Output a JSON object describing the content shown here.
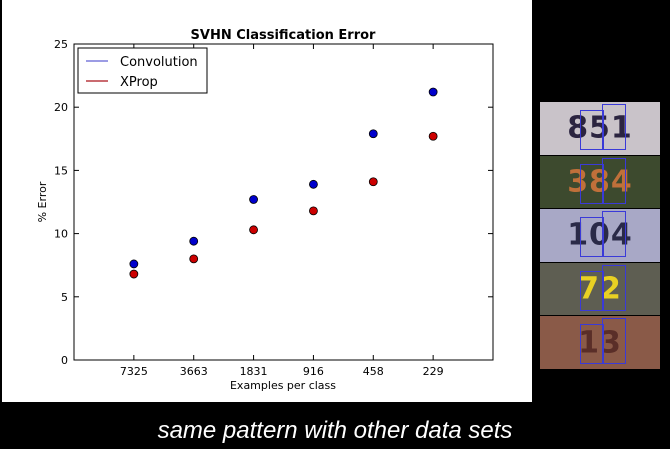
{
  "chart_data": {
    "type": "scatter",
    "title": "SVHN Classification Error",
    "xlabel": "Examples per class",
    "ylabel": "% Error",
    "categories": [
      "7325",
      "3663",
      "1831",
      "916",
      "458",
      "229"
    ],
    "ylim": [
      0,
      25
    ],
    "yticks": [
      "0",
      "5",
      "10",
      "15",
      "20",
      "25"
    ],
    "grid": false,
    "legend_position": "top-left",
    "series": [
      {
        "name": "Convolution",
        "color": "#0000cc",
        "values": [
          7.6,
          9.4,
          12.7,
          13.9,
          17.9,
          21.2
        ]
      },
      {
        "name": "XProp",
        "color": "#cc0000",
        "values": [
          6.8,
          8.0,
          10.3,
          11.8,
          14.1,
          17.7
        ]
      }
    ]
  },
  "thumbnails": [
    {
      "text": "851",
      "bg": "#c9c3c9",
      "fg": "#2b2440"
    },
    {
      "text": "384",
      "bg": "#3d4a2e",
      "fg": "#c0703a"
    },
    {
      "text": "104",
      "bg": "#a8a8c6",
      "fg": "#2a2a48"
    },
    {
      "text": "72",
      "bg": "#5e5e52",
      "fg": "#e8d023"
    },
    {
      "text": "13",
      "bg": "#8a5a48",
      "fg": "#5a2e28"
    }
  ],
  "caption": "same pattern with other data sets"
}
